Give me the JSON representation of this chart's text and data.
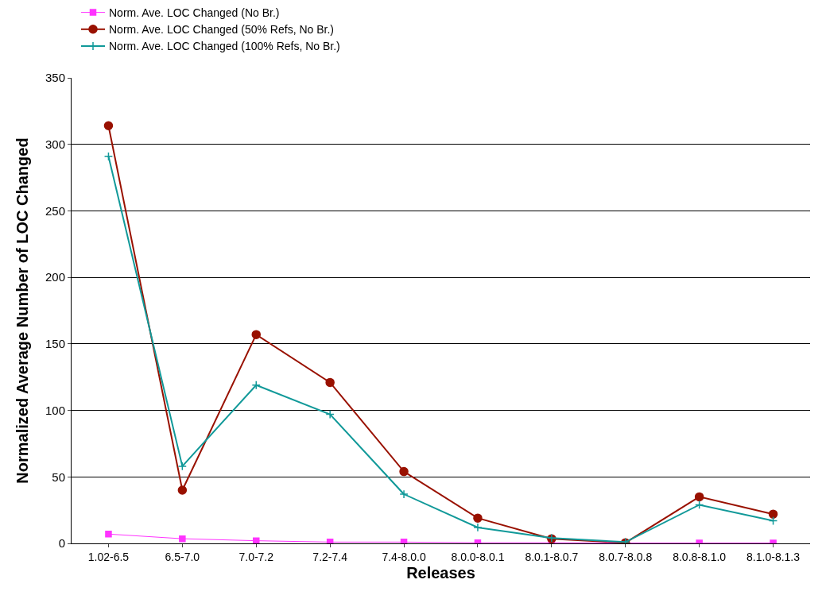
{
  "chart_data": {
    "type": "line",
    "xlabel": "Releases",
    "ylabel": "Normalized Average Number of LOC Changed",
    "categories": [
      "1.02-6.5",
      "6.5-7.0",
      "7.0-7.2",
      "7.2-7.4",
      "7.4-8.0.0",
      "8.0.0-8.0.1",
      "8.0.1-8.0.7",
      "8.0.7-8.0.8",
      "8.0.8-8.1.0",
      "8.1.0-8.1.3"
    ],
    "series": [
      {
        "name": "Norm. Ave. LOC Changed (No Br.)",
        "color": "#ff33ff",
        "marker": "square",
        "values": [
          7,
          3.5,
          2,
          1,
          1,
          0.5,
          0.5,
          0.3,
          0.3,
          0.3
        ]
      },
      {
        "name": "Norm. Ave. LOC Changed (50% Refs, No Br.)",
        "color": "#991100",
        "marker": "circle",
        "values": [
          314,
          40,
          157,
          121,
          54,
          19,
          3.5,
          0.5,
          35,
          22
        ]
      },
      {
        "name": "Norm. Ave. LOC Changed (100% Refs, No Br.)",
        "color": "#119999",
        "marker": "cross",
        "values": [
          291,
          58,
          119,
          97,
          37,
          12,
          4,
          1,
          29,
          17
        ]
      }
    ],
    "ylim": [
      0,
      350
    ],
    "yticks": [
      0,
      50,
      100,
      150,
      200,
      250,
      300,
      350
    ],
    "grid": "y",
    "legend": "top"
  }
}
